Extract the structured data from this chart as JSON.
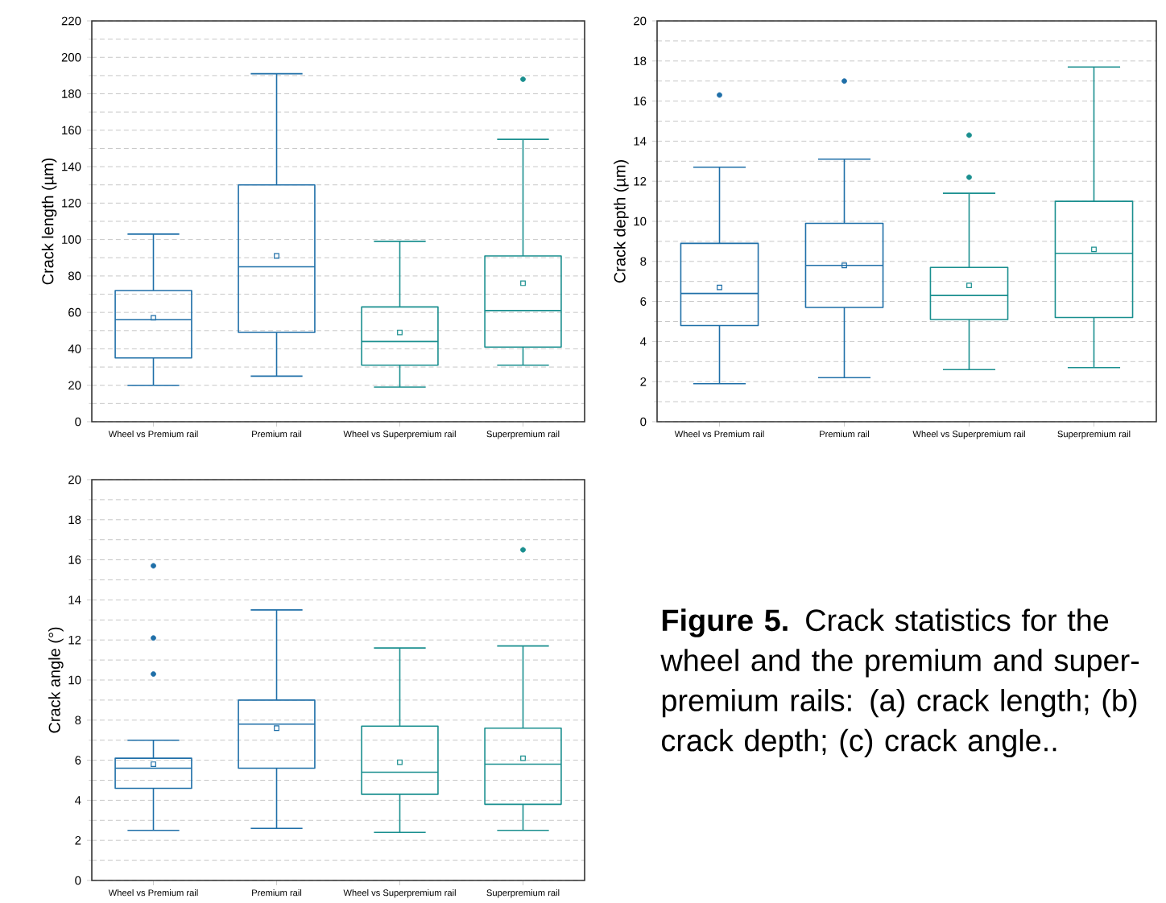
{
  "chart_data": [
    {
      "type": "box",
      "ylabel": "Crack length (µm)",
      "categories": [
        "Wheel vs Premium rail",
        "Premium rail",
        "Wheel vs Superpremium rail",
        "Superpremium rail"
      ],
      "colors": [
        "#1f6fa8",
        "#1f6fa8",
        "#1a8f8f",
        "#1a8f8f"
      ],
      "grid": "y",
      "ylim": [
        0,
        220
      ],
      "yticks": [
        0,
        {
          "value": 10,
          "label": null
        },
        20,
        {
          "value": 30,
          "label": null
        },
        40,
        {
          "value": 50,
          "label": null
        },
        60,
        {
          "value": 70,
          "label": null
        },
        80,
        {
          "value": 90,
          "label": null
        },
        100,
        {
          "value": 110,
          "label": null
        },
        120,
        {
          "value": 130,
          "label": null
        },
        140,
        {
          "value": 150,
          "label": null
        },
        160,
        {
          "value": 170,
          "label": null
        },
        180,
        {
          "value": 190,
          "label": null
        },
        200,
        {
          "value": 210,
          "label": null
        },
        220
      ],
      "boxes": [
        {
          "low": 20,
          "q1": 35,
          "median": 56,
          "q3": 72,
          "high": 103,
          "mean": 57
        },
        {
          "low": 25,
          "q1": 49,
          "median": 85,
          "q3": 130,
          "high": 191,
          "mean": 91
        },
        {
          "low": 19,
          "q1": 31,
          "median": 44,
          "q3": 63,
          "high": 99,
          "mean": 49
        },
        {
          "low": 31,
          "q1": 41,
          "median": 61,
          "q3": 91,
          "high": 155,
          "mean": 76,
          "outliers": [
            188
          ]
        }
      ]
    },
    {
      "type": "box",
      "ylabel": "Crack depth (µm)",
      "categories": [
        "Wheel vs Premium rail",
        "Premium rail",
        "Wheel vs Superpremium rail",
        "Superpremium rail"
      ],
      "colors": [
        "#1f6fa8",
        "#1f6fa8",
        "#1a8f8f",
        "#1a8f8f"
      ],
      "grid": "y",
      "ylim": [
        0,
        20
      ],
      "yticks": [
        0,
        {
          "value": 1,
          "label": null
        },
        2,
        {
          "value": 3,
          "label": null
        },
        4,
        {
          "value": 5,
          "label": null
        },
        6,
        {
          "value": 7,
          "label": null
        },
        8,
        {
          "value": 9,
          "label": null
        },
        10,
        {
          "value": 11,
          "label": null
        },
        12,
        {
          "value": 13,
          "label": null
        },
        14,
        {
          "value": 15,
          "label": null
        },
        16,
        {
          "value": 17,
          "label": null
        },
        18,
        {
          "value": 19,
          "label": null
        },
        20
      ],
      "boxes": [
        {
          "low": 1.9,
          "q1": 4.8,
          "median": 6.4,
          "q3": 8.9,
          "high": 12.7,
          "mean": 6.7,
          "outliers": [
            16.3
          ]
        },
        {
          "low": 2.2,
          "q1": 5.7,
          "median": 7.8,
          "q3": 9.9,
          "high": 13.1,
          "mean": 7.8,
          "outliers": [
            17.0
          ]
        },
        {
          "low": 2.6,
          "q1": 5.1,
          "median": 6.3,
          "q3": 7.7,
          "high": 11.4,
          "mean": 6.8,
          "outliers": [
            12.2,
            14.3
          ]
        },
        {
          "low": 2.7,
          "q1": 5.2,
          "median": 8.4,
          "q3": 11.0,
          "high": 17.7,
          "mean": 8.6
        }
      ]
    },
    {
      "type": "box",
      "ylabel": "Crack angle (°)",
      "categories": [
        "Wheel vs Premium rail",
        "Premium rail",
        "Wheel vs Superpremium rail",
        "Superpremium rail"
      ],
      "colors": [
        "#1f6fa8",
        "#1f6fa8",
        "#1a8f8f",
        "#1a8f8f"
      ],
      "grid": "y",
      "ylim": [
        0,
        20
      ],
      "yticks": [
        0,
        {
          "value": 1,
          "label": null
        },
        2,
        {
          "value": 3,
          "label": null
        },
        4,
        {
          "value": 5,
          "label": null
        },
        6,
        {
          "value": 7,
          "label": null
        },
        8,
        {
          "value": 9,
          "label": null
        },
        10,
        {
          "value": 11,
          "label": null
        },
        12,
        {
          "value": 13,
          "label": null
        },
        14,
        {
          "value": 15,
          "label": null
        },
        16,
        {
          "value": 17,
          "label": null
        },
        18,
        {
          "value": 19,
          "label": null
        },
        20
      ],
      "boxes": [
        {
          "low": 2.5,
          "q1": 4.6,
          "median": 5.6,
          "q3": 6.1,
          "high": 7.0,
          "mean": 5.8,
          "outliers": [
            10.3,
            12.1,
            15.7
          ]
        },
        {
          "low": 2.6,
          "q1": 5.6,
          "median": 7.8,
          "q3": 9.0,
          "high": 13.5,
          "mean": 7.6
        },
        {
          "low": 2.4,
          "q1": 4.3,
          "median": 5.4,
          "q3": 7.7,
          "high": 11.6,
          "mean": 5.9
        },
        {
          "low": 2.5,
          "q1": 3.8,
          "median": 5.8,
          "q3": 7.6,
          "high": 11.7,
          "mean": 6.1,
          "outliers": [
            16.5
          ]
        }
      ]
    },
    {
      "type": "other",
      "title": "**Figure 5.** Crack statistics for the wheel and the premium and super-premium rails: (a) crack length; (b) crack depth; (c) crack angle.."
    }
  ]
}
